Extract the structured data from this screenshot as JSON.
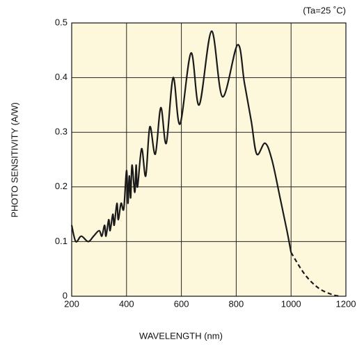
{
  "chart_data": {
    "type": "line",
    "annotation": "(Ta=25 ˚C)",
    "xlabel": "WAVELENGTH (nm)",
    "ylabel": "PHOTO SENSITIVITY (A/W)",
    "xlim": [
      200,
      1200
    ],
    "xticks": [
      200,
      400,
      600,
      800,
      1000,
      1200
    ],
    "ylim": [
      0,
      0.5
    ],
    "yticks": [
      0,
      0.1,
      0.2,
      0.3,
      0.4,
      0.5
    ],
    "grid": true,
    "background": "#fdf8dc",
    "series": [
      {
        "color": "#1a1a1a",
        "dashed": false,
        "x": [
          200,
          215,
          235,
          260,
          280,
          300,
          310,
          320,
          325,
          335,
          340,
          350,
          355,
          365,
          370,
          380,
          390,
          400,
          405,
          410,
          415,
          420,
          430,
          435,
          440,
          455,
          470,
          485,
          505,
          525,
          545,
          570,
          595,
          635,
          665,
          710,
          750,
          805,
          830,
          855,
          875,
          905,
          930,
          960,
          985,
          1000
        ],
        "values": [
          0.13,
          0.1,
          0.11,
          0.1,
          0.11,
          0.12,
          0.11,
          0.13,
          0.11,
          0.14,
          0.12,
          0.15,
          0.13,
          0.17,
          0.14,
          0.17,
          0.16,
          0.23,
          0.17,
          0.22,
          0.18,
          0.24,
          0.19,
          0.24,
          0.2,
          0.27,
          0.22,
          0.31,
          0.26,
          0.345,
          0.28,
          0.4,
          0.315,
          0.445,
          0.35,
          0.485,
          0.365,
          0.46,
          0.39,
          0.32,
          0.26,
          0.28,
          0.25,
          0.18,
          0.12,
          0.08
        ]
      },
      {
        "color": "#1a1a1a",
        "dashed": true,
        "x": [
          1000,
          1050,
          1100,
          1150,
          1180
        ],
        "values": [
          0.08,
          0.04,
          0.015,
          0.003,
          0
        ]
      }
    ]
  }
}
